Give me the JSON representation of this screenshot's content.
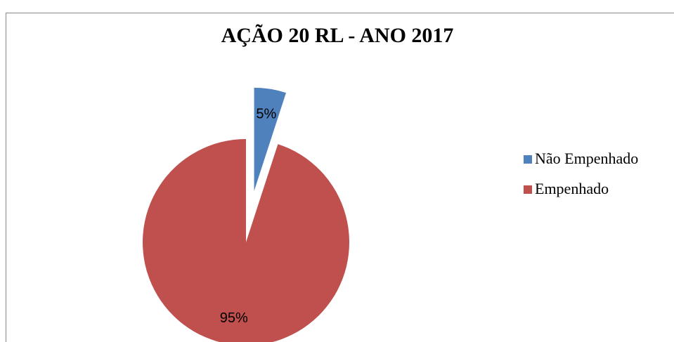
{
  "chart_data": {
    "type": "pie",
    "title": "AÇÃO 20 RL - ANO 2017",
    "categories": [
      "Não Empenhado",
      "Empenhado"
    ],
    "values": [
      5,
      95
    ],
    "value_labels": [
      "5%",
      "95%"
    ],
    "colors": [
      "#4f81bd",
      "#c0504d"
    ],
    "exploded": [
      true,
      false
    ],
    "legend": "right"
  }
}
